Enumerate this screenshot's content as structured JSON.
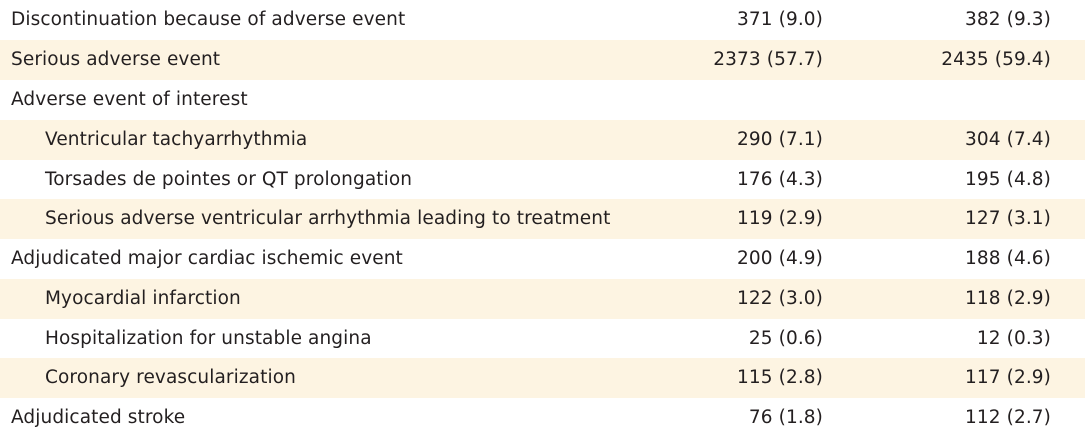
{
  "rows": [
    {
      "label": "Discontinuation because of adverse event",
      "col1": "371 (9.0)",
      "col2": "382 (9.3)",
      "indent": false,
      "shaded": false
    },
    {
      "label": "Serious adverse event",
      "col1": "2373 (57.7)",
      "col2": "2435 (59.4)",
      "indent": false,
      "shaded": true
    },
    {
      "label": "Adverse event of interest",
      "col1": "",
      "col2": "",
      "indent": false,
      "shaded": false
    },
    {
      "label": "Ventricular tachyarrhythmia",
      "col1": "290 (7.1)",
      "col2": "304 (7.4)",
      "indent": true,
      "shaded": true
    },
    {
      "label": "Torsades de pointes or QT prolongation",
      "col1": "176 (4.3)",
      "col2": "195 (4.8)",
      "indent": true,
      "shaded": false
    },
    {
      "label": "Serious adverse ventricular arrhythmia leading to treatment",
      "col1": "119 (2.9)",
      "col2": "127 (3.1)",
      "indent": true,
      "shaded": true
    },
    {
      "label": "Adjudicated major cardiac ischemic event",
      "col1": "200 (4.9)",
      "col2": "188 (4.6)",
      "indent": false,
      "shaded": false
    },
    {
      "label": "Myocardial infarction",
      "col1": "122 (3.0)",
      "col2": "118 (2.9)",
      "indent": true,
      "shaded": true
    },
    {
      "label": "Hospitalization for unstable angina",
      "col1": "25 (0.6)",
      "col2": "12 (0.3)",
      "indent": true,
      "shaded": false
    },
    {
      "label": "Coronary revascularization",
      "col1": "115 (2.8)",
      "col2": "117 (2.9)",
      "indent": true,
      "shaded": true
    },
    {
      "label": "Adjudicated stroke",
      "col1": "76 (1.8)",
      "col2": "112 (2.7)",
      "indent": false,
      "shaded": false
    }
  ],
  "colors": {
    "shade": "#fdf4e2",
    "text": "#231f20"
  }
}
